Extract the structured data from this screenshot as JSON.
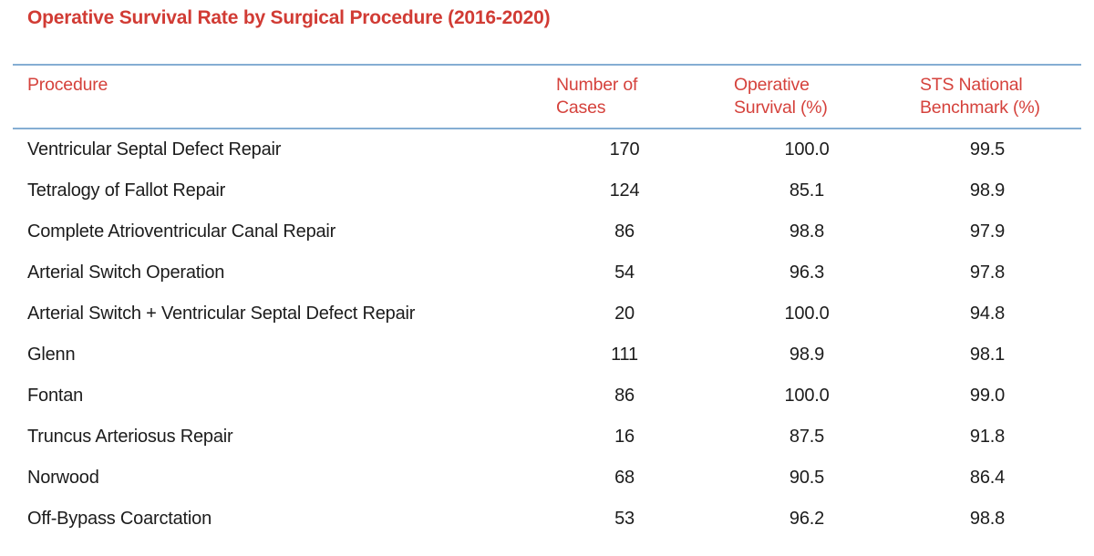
{
  "title": "Operative Survival Rate by Surgical Procedure (2016-2020)",
  "colors": {
    "accent_red": "#d13b34",
    "rule_blue": "#85aed3",
    "body_text": "#1c1c1c",
    "background": "#ffffff"
  },
  "table": {
    "header": {
      "procedure": "Procedure",
      "cases_line1": "Number of",
      "cases_line2": "Cases",
      "survival_line1": "Operative",
      "survival_line2": "Survival (%)",
      "benchmark_line1": "STS National",
      "benchmark_line2": "Benchmark (%)"
    },
    "rows": [
      {
        "procedure": "Ventricular Septal Defect Repair",
        "cases": "170",
        "survival": "100.0",
        "benchmark": "99.5"
      },
      {
        "procedure": "Tetralogy of Fallot Repair",
        "cases": "124",
        "survival": "85.1",
        "benchmark": "98.9"
      },
      {
        "procedure": "Complete Atrioventricular Canal Repair",
        "cases": "86",
        "survival": "98.8",
        "benchmark": "97.9"
      },
      {
        "procedure": "Arterial Switch Operation",
        "cases": "54",
        "survival": "96.3",
        "benchmark": "97.8"
      },
      {
        "procedure": "Arterial Switch + Ventricular Septal Defect Repair",
        "cases": "20",
        "survival": "100.0",
        "benchmark": "94.8"
      },
      {
        "procedure": "Glenn",
        "cases": "111",
        "survival": "98.9",
        "benchmark": "98.1"
      },
      {
        "procedure": "Fontan",
        "cases": "86",
        "survival": "100.0",
        "benchmark": "99.0"
      },
      {
        "procedure": "Truncus Arteriosus Repair",
        "cases": "16",
        "survival": "87.5",
        "benchmark": "91.8"
      },
      {
        "procedure": "Norwood",
        "cases": "68",
        "survival": "90.5",
        "benchmark": "86.4"
      },
      {
        "procedure": "Off-Bypass Coarctation",
        "cases": "53",
        "survival": "96.2",
        "benchmark": "98.8"
      }
    ]
  },
  "chart_data": {
    "type": "table",
    "title": "Operative Survival Rate by Surgical Procedure (2016-2020)",
    "columns": [
      "Procedure",
      "Number of Cases",
      "Operative Survival (%)",
      "STS National Benchmark (%)"
    ],
    "rows": [
      [
        "Ventricular Septal Defect Repair",
        170,
        100.0,
        99.5
      ],
      [
        "Tetralogy of Fallot Repair",
        124,
        85.1,
        98.9
      ],
      [
        "Complete Atrioventricular Canal Repair",
        86,
        98.8,
        97.9
      ],
      [
        "Arterial Switch Operation",
        54,
        96.3,
        97.8
      ],
      [
        "Arterial Switch + Ventricular Septal Defect Repair",
        20,
        100.0,
        94.8
      ],
      [
        "Glenn",
        111,
        98.9,
        98.1
      ],
      [
        "Fontan",
        86,
        100.0,
        99.0
      ],
      [
        "Truncus Arteriosus Repair",
        16,
        87.5,
        91.8
      ],
      [
        "Norwood",
        68,
        90.5,
        86.4
      ],
      [
        "Off-Bypass Coarctation",
        53,
        96.2,
        98.8
      ]
    ],
    "layout": {
      "header_text_color": "#d5423c",
      "rule_color": "#85aed3",
      "grid": "horizontal rules above and below header only"
    }
  }
}
